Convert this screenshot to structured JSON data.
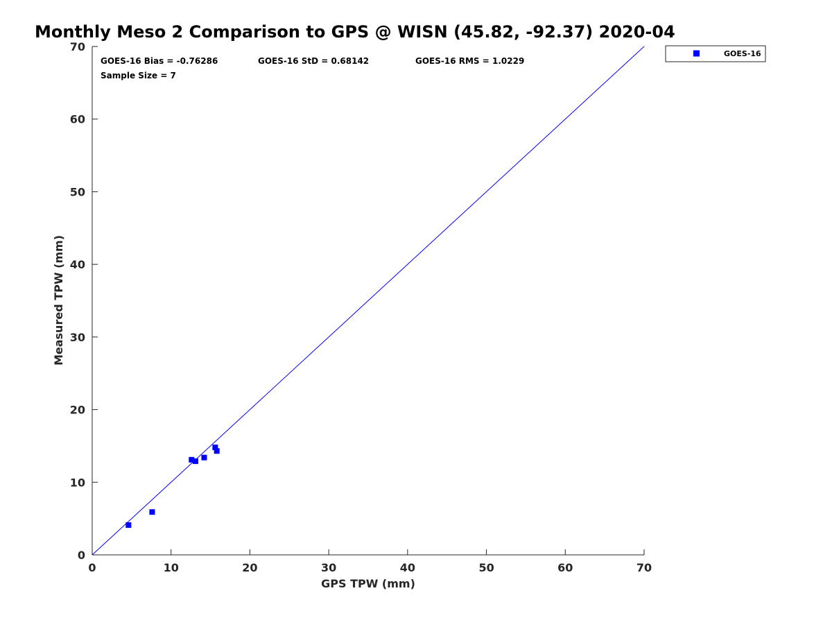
{
  "chart_data": {
    "type": "scatter",
    "title": "Monthly Meso 2 Comparison to GPS @ WISN (45.82, -92.37) 2020-04",
    "xlabel": "GPS TPW (mm)",
    "ylabel": "Measured TPW (mm)",
    "xlim": [
      0,
      70
    ],
    "ylim": [
      0,
      70
    ],
    "xticks": [
      0,
      10,
      20,
      30,
      40,
      50,
      60,
      70
    ],
    "yticks": [
      0,
      10,
      20,
      30,
      40,
      50,
      60,
      70
    ],
    "grid": false,
    "legend_position": "outside-top-right",
    "series": [
      {
        "name": "GOES-16",
        "color": "#0000ff",
        "marker": "square",
        "x": [
          4.6,
          7.6,
          12.6,
          13.1,
          14.2,
          15.6,
          15.8
        ],
        "y": [
          4.1,
          5.9,
          13.1,
          12.9,
          13.4,
          14.8,
          14.3
        ]
      }
    ],
    "reference_line": {
      "from": [
        0,
        0
      ],
      "to": [
        70,
        70
      ],
      "color": "#0000ff"
    },
    "annotations": [
      "GOES-16 Bias = -0.76286",
      "GOES-16 StD = 0.68142",
      "GOES-16 RMS = 1.0229",
      "Sample Size = 7"
    ]
  }
}
